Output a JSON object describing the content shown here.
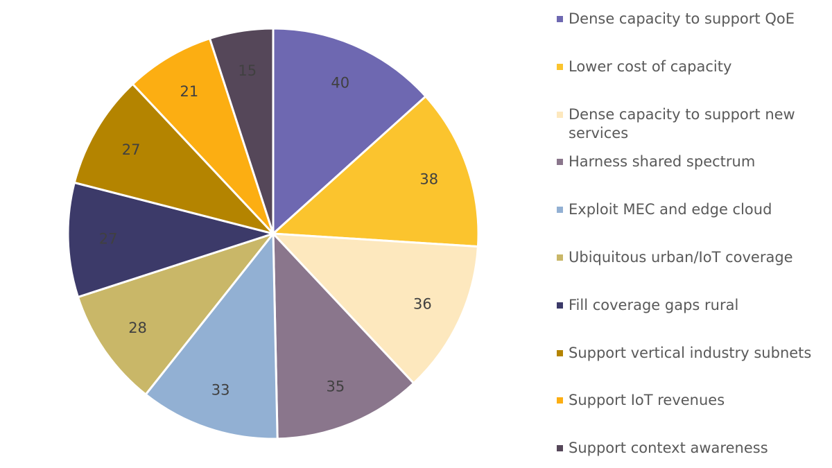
{
  "chart_data": {
    "type": "pie",
    "title": "",
    "start": "12 o'clock",
    "direction": "clockwise",
    "slices": [
      {
        "label": "Dense capacity to support QoE",
        "value": 40,
        "color": "#6E68B1"
      },
      {
        "label": "Lower cost of capacity",
        "value": 38,
        "color": "#FBC42E"
      },
      {
        "label": "Dense capacity to support new services",
        "value": 36,
        "color": "#FDE8BE"
      },
      {
        "label": "Harness shared spectrum",
        "value": 35,
        "color": "#8A768C"
      },
      {
        "label": "Exploit MEC and edge cloud",
        "value": 33,
        "color": "#92B0D3"
      },
      {
        "label": "Ubiquitous urban/IoT coverage",
        "value": 28,
        "color": "#C9B768"
      },
      {
        "label": "Fill coverage gaps rural",
        "value": 27,
        "color": "#3C3A69"
      },
      {
        "label": "Support vertical industry subnets",
        "value": 27,
        "color": "#B48400"
      },
      {
        "label": "Support IoT revenues",
        "value": 21,
        "color": "#FCAE12"
      },
      {
        "label": "Support context awareness",
        "value": 15,
        "color": "#554759"
      }
    ],
    "legend_position": "right"
  }
}
